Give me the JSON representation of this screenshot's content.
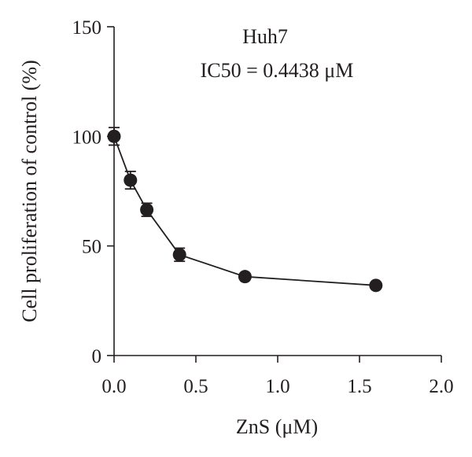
{
  "chart_data": {
    "type": "scatter",
    "title": "Huh7",
    "annotation": "IC50 = 0.4438 μM",
    "xlabel": "ZnS (μM)",
    "ylabel": "Cell proliferation of control (%)",
    "xlim": [
      0,
      2.0
    ],
    "ylim": [
      0,
      150
    ],
    "x_ticks": [
      "0.0",
      "0.5",
      "1.0",
      "1.5",
      "2.0"
    ],
    "y_ticks": [
      "0",
      "50",
      "100",
      "150"
    ],
    "x_tick_values": [
      0,
      0.5,
      1.0,
      1.5,
      2.0
    ],
    "y_tick_values": [
      0,
      50,
      100,
      150
    ],
    "grid": false,
    "connected": true,
    "point_color": "#231f20",
    "series": [
      {
        "x": [
          0,
          0.1,
          0.2,
          0.4,
          0.8,
          1.6
        ],
        "y": [
          100,
          80,
          66.5,
          46,
          36,
          32
        ],
        "error": [
          4,
          4,
          3,
          3,
          0,
          0
        ]
      }
    ]
  }
}
